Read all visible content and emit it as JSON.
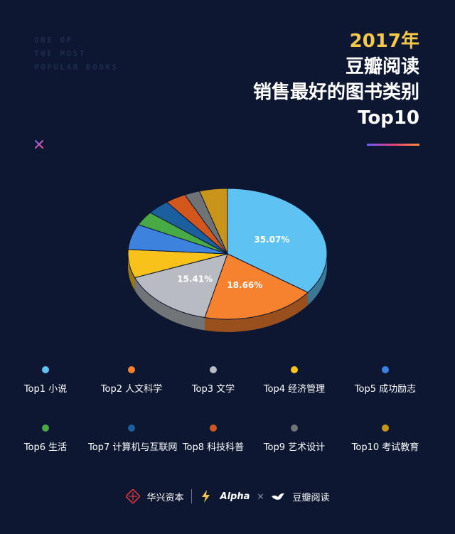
{
  "side_text": [
    "ONE OF",
    "THE MOST",
    "POPULAR BOOKS"
  ],
  "title": {
    "year": "2017年",
    "line2": "豆瓣阅读",
    "line3": "销售最好的图书类别",
    "line4": "Top10"
  },
  "chart_data": {
    "type": "pie",
    "title": "2017年 豆瓣阅读 销售最好的图书类别 Top10",
    "slices": [
      {
        "label": "Top1  小说",
        "value": 35.07,
        "color": "#5ec2f2",
        "data_label": "35.07%"
      },
      {
        "label": "Top2  人文科学",
        "value": 18.66,
        "color": "#f6812f",
        "data_label": "18.66%"
      },
      {
        "label": "Top3  文学",
        "value": 15.41,
        "color": "#b8bcc2",
        "data_label": "15.41%"
      },
      {
        "label": "Top4  经济管理",
        "value": 7.0,
        "color": "#f8c21a",
        "data_label": ""
      },
      {
        "label": "Top5  成功励志",
        "value": 6.3,
        "color": "#3d82dc",
        "data_label": ""
      },
      {
        "label": "Top6  生活",
        "value": 3.5,
        "color": "#48aa44",
        "data_label": ""
      },
      {
        "label": "Top7  计算机与互联网",
        "value": 3.7,
        "color": "#1b5f9f",
        "data_label": ""
      },
      {
        "label": "Top8  科技科普",
        "value": 3.4,
        "color": "#d3571c",
        "data_label": ""
      },
      {
        "label": "Top9  艺术设计",
        "value": 2.5,
        "color": "#707375",
        "data_label": ""
      },
      {
        "label": "Top10  考试教育",
        "value": 4.56,
        "color": "#c9941a",
        "data_label": ""
      }
    ]
  },
  "footer": {
    "brand1": "华兴资本",
    "brand2": "Alpha",
    "times": "×",
    "brand3": "豆瓣阅读"
  }
}
